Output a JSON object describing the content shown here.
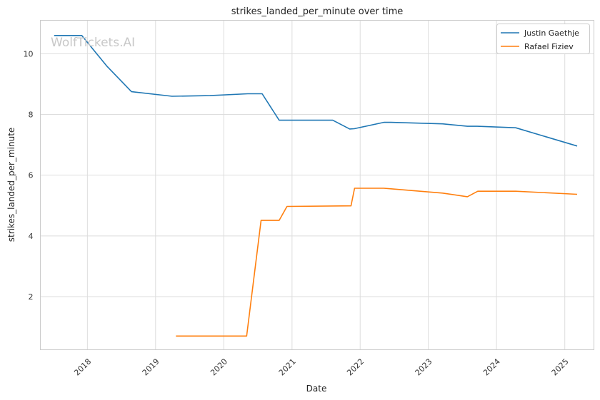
{
  "watermark": "WolfTickets.AI",
  "chart_data": {
    "type": "line",
    "title": "strikes_landed_per_minute over time",
    "xlabel": "Date",
    "ylabel": "strikes_landed_per_minute",
    "x_ticks": [
      "2018",
      "2019",
      "2020",
      "2021",
      "2022",
      "2023",
      "2024",
      "2025"
    ],
    "y_ticks": [
      2,
      4,
      6,
      8,
      10
    ],
    "xlim": [
      "2017-04-24",
      "2025-06-06"
    ],
    "ylim": [
      0.25,
      11.1
    ],
    "grid": true,
    "legend_position": "top-right",
    "series": [
      {
        "name": "Justin Gaethje",
        "color": "#1f77b4",
        "points": [
          [
            "2017-07-07",
            10.6
          ],
          [
            "2017-12-02",
            10.6
          ],
          [
            "2018-04-14",
            9.6
          ],
          [
            "2018-08-25",
            8.75
          ],
          [
            "2019-03-30",
            8.6
          ],
          [
            "2019-10-19",
            8.62
          ],
          [
            "2020-05-09",
            8.68
          ],
          [
            "2020-07-25",
            8.68
          ],
          [
            "2020-10-24",
            7.81
          ],
          [
            "2021-08-07",
            7.81
          ],
          [
            "2021-11-06",
            7.52
          ],
          [
            "2021-12-01",
            7.53
          ],
          [
            "2022-05-07",
            7.74
          ],
          [
            "2022-06-15",
            7.74
          ],
          [
            "2023-03-18",
            7.69
          ],
          [
            "2023-07-29",
            7.61
          ],
          [
            "2023-09-20",
            7.61
          ],
          [
            "2024-04-13",
            7.56
          ],
          [
            "2025-03-08",
            6.96
          ]
        ]
      },
      {
        "name": "Rafael Fiziev",
        "color": "#ff7f0e",
        "points": [
          [
            "2019-04-20",
            0.7
          ],
          [
            "2020-05-03",
            0.7
          ],
          [
            "2020-07-19",
            4.51
          ],
          [
            "2020-10-24",
            4.51
          ],
          [
            "2020-12-05",
            4.97
          ],
          [
            "2021-11-13",
            4.99
          ],
          [
            "2021-12-02",
            5.57
          ],
          [
            "2022-05-07",
            5.57
          ],
          [
            "2022-06-15",
            5.55
          ],
          [
            "2023-03-18",
            5.41
          ],
          [
            "2023-07-29",
            5.29
          ],
          [
            "2023-09-23",
            5.47
          ],
          [
            "2024-04-13",
            5.47
          ],
          [
            "2025-03-08",
            5.37
          ]
        ]
      }
    ]
  }
}
